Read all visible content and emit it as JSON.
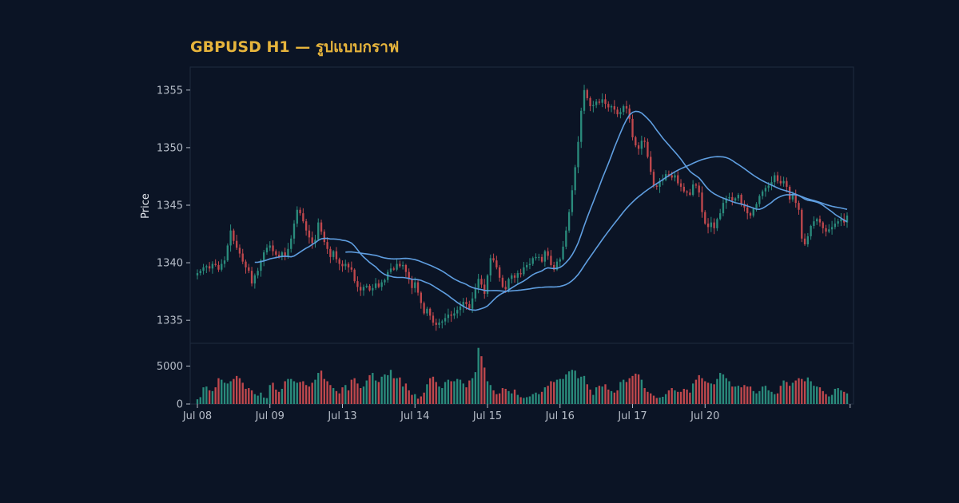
{
  "chart_data": {
    "type": "candlestick",
    "title": "GBPUSD H1 — รูปแบบกราฟ",
    "ylabel": "Price",
    "ylim": [
      1333,
      1357
    ],
    "y_ticks": [
      1335,
      1340,
      1345,
      1350,
      1355
    ],
    "volume_ylim": [
      0,
      8000
    ],
    "volume_ticks": [
      0,
      5000
    ],
    "x_tick_labels": [
      "Jul 08",
      "Jul 09",
      "Jul 13",
      "Jul 14",
      "Jul 15",
      "Jul 16",
      "Jul 17",
      "Jul 20"
    ],
    "bars_per_day": 24,
    "colors": {
      "background": "#0b1425",
      "up": "#2a8b7c",
      "down": "#c0484d",
      "ma": "#5f9ee0",
      "title": "#e6b43c",
      "frame": "#1f2b3e",
      "tick_text": "#b6bdc8"
    },
    "closes": [
      1339.1,
      1339.3,
      1339.6,
      1339.7,
      1339.5,
      1339.9,
      1339.8,
      1339.4,
      1339.9,
      1340.2,
      1341.5,
      1342.8,
      1341.9,
      1341.3,
      1340.8,
      1340.1,
      1339.6,
      1339.3,
      1338.2,
      1338.9,
      1339.3,
      1340.2,
      1340.9,
      1341.3,
      1341.5,
      1341.0,
      1340.7,
      1340.5,
      1340.9,
      1340.6,
      1341.2,
      1342.1,
      1343.4,
      1344.6,
      1344.3,
      1343.6,
      1342.8,
      1342.2,
      1341.7,
      1342.0,
      1343.5,
      1342.7,
      1341.8,
      1341.2,
      1340.5,
      1341.0,
      1340.3,
      1339.9,
      1339.7,
      1339.9,
      1339.6,
      1339.4,
      1338.4,
      1337.9,
      1337.6,
      1337.9,
      1338.0,
      1337.6,
      1337.8,
      1338.2,
      1337.9,
      1338.3,
      1338.5,
      1339.2,
      1339.5,
      1339.4,
      1339.9,
      1339.7,
      1339.8,
      1339.2,
      1338.6,
      1337.8,
      1338.3,
      1337.4,
      1336.5,
      1335.6,
      1336.0,
      1335.4,
      1334.8,
      1334.6,
      1334.8,
      1334.9,
      1335.2,
      1335.5,
      1335.4,
      1335.6,
      1335.9,
      1336.2,
      1336.6,
      1336.4,
      1336.0,
      1336.9,
      1337.8,
      1338.6,
      1338.1,
      1337.3,
      1338.9,
      1340.4,
      1340.2,
      1339.6,
      1338.7,
      1337.9,
      1337.7,
      1338.6,
      1338.9,
      1338.7,
      1339.1,
      1339.0,
      1339.6,
      1339.8,
      1339.9,
      1340.4,
      1340.5,
      1340.5,
      1340.1,
      1341.0,
      1340.6,
      1339.8,
      1339.4,
      1340.1,
      1340.3,
      1341.4,
      1342.8,
      1344.4,
      1346.3,
      1348.3,
      1350.5,
      1353.2,
      1355.0,
      1354.3,
      1353.6,
      1353.7,
      1354.0,
      1353.9,
      1354.2,
      1353.8,
      1353.5,
      1353.6,
      1353.3,
      1352.9,
      1353.1,
      1353.6,
      1353.4,
      1352.5,
      1350.9,
      1350.2,
      1349.9,
      1350.6,
      1350.5,
      1349.2,
      1347.9,
      1346.7,
      1346.6,
      1347.1,
      1347.2,
      1347.7,
      1347.6,
      1347.4,
      1347.6,
      1346.9,
      1346.6,
      1346.2,
      1346.1,
      1345.9,
      1346.8,
      1346.7,
      1346.1,
      1344.4,
      1343.4,
      1343.1,
      1343.5,
      1343.0,
      1343.8,
      1344.3,
      1345.2,
      1345.6,
      1345.7,
      1345.4,
      1345.6,
      1345.9,
      1345.1,
      1344.8,
      1344.3,
      1344.1,
      1344.7,
      1345.1,
      1345.8,
      1346.2,
      1346.5,
      1346.7,
      1347.0,
      1347.6,
      1347.1,
      1346.9,
      1347.1,
      1346.6,
      1345.5,
      1345.9,
      1345.2,
      1344.6,
      1342.1,
      1341.6,
      1342.3,
      1343.2,
      1343.6,
      1343.8,
      1343.5,
      1343.0,
      1342.7,
      1342.9,
      1343.1,
      1343.4,
      1343.6,
      1343.8,
      1343.5,
      1344.1
    ],
    "volumes": [
      620,
      900,
      2200,
      2300,
      1800,
      1700,
      2200,
      3400,
      3200,
      2800,
      2700,
      3000,
      3300,
      3700,
      3400,
      2800,
      2000,
      2100,
      1800,
      1300,
      1100,
      1500,
      850,
      780,
      2500,
      2800,
      1900,
      1600,
      2000,
      3000,
      3300,
      3300,
      3000,
      2800,
      2900,
      3000,
      2500,
      2300,
      2800,
      3200,
      4100,
      4400,
      3300,
      3000,
      2500,
      2100,
      1700,
      1400,
      2200,
      2500,
      1800,
      3200,
      3400,
      2700,
      2100,
      2300,
      3100,
      3800,
      4100,
      3100,
      2900,
      3600,
      3900,
      3800,
      4500,
      3400,
      3400,
      3500,
      2300,
      2700,
      1800,
      1200,
      1300,
      700,
      1000,
      1500,
      2600,
      3400,
      3600,
      2900,
      2300,
      2100,
      2900,
      3200,
      3000,
      3000,
      3300,
      3200,
      2700,
      2200,
      3100,
      3400,
      4200,
      7400,
      6300,
      4800,
      3000,
      2500,
      1800,
      1300,
      1400,
      2100,
      2000,
      1700,
      1400,
      1900,
      1200,
      900,
      800,
      900,
      1000,
      1300,
      1500,
      1300,
      1600,
      2200,
      2400,
      3000,
      2900,
      3200,
      3300,
      3300,
      3900,
      4300,
      4500,
      4400,
      3400,
      3600,
      3700,
      2600,
      1900,
      1200,
      2200,
      2400,
      2300,
      2600,
      1900,
      1700,
      1500,
      1800,
      2900,
      3200,
      2900,
      3400,
      3700,
      4000,
      3900,
      3200,
      2100,
      1600,
      1400,
      1100,
      800,
      850,
      950,
      1300,
      1800,
      2100,
      1800,
      1600,
      1600,
      2000,
      1900,
      1500,
      2700,
      3200,
      3800,
      3400,
      3000,
      2800,
      2700,
      2600,
      3300,
      4100,
      3900,
      3400,
      3000,
      2300,
      2300,
      2400,
      2200,
      2500,
      2300,
      2300,
      1700,
      1400,
      1700,
      2300,
      2400,
      1800,
      1600,
      1300,
      1400,
      2400,
      3100,
      2900,
      2400,
      2800,
      3100,
      3400,
      3300,
      3000,
      3500,
      3000,
      2400,
      2300,
      2200,
      1700,
      1300,
      1000,
      1200,
      2000,
      2100,
      1800,
      1600,
      1400
    ]
  }
}
